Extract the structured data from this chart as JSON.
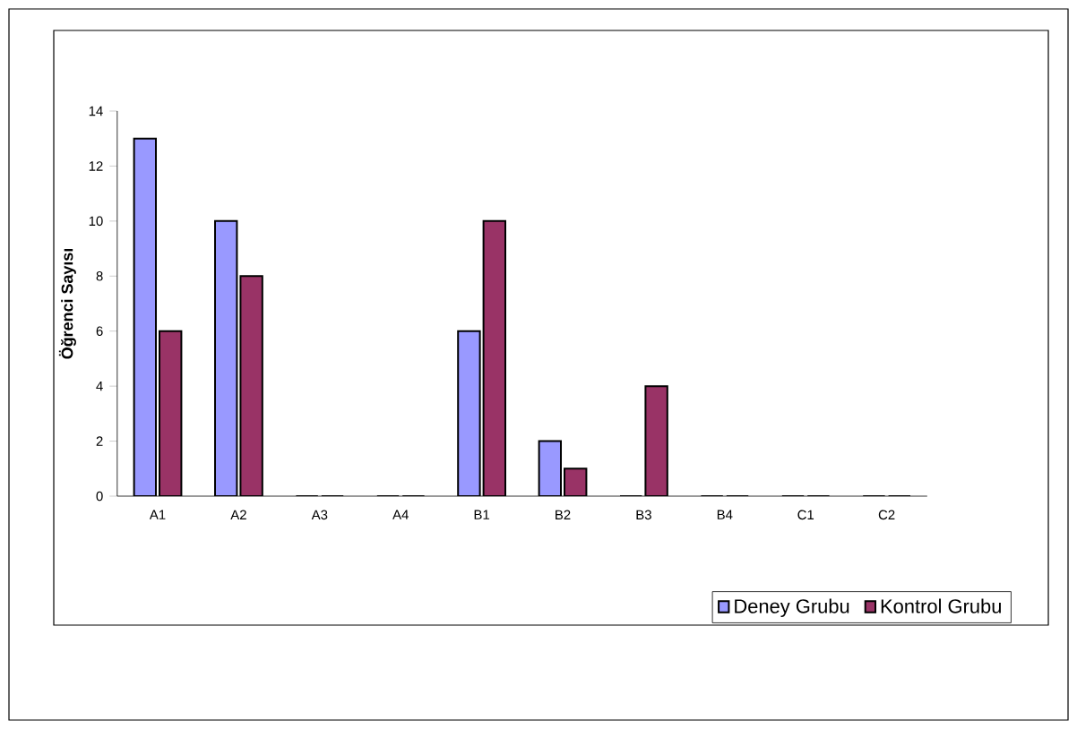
{
  "chart_data": {
    "type": "bar",
    "ylabel": "Öğrenci Sayısı",
    "categories": [
      "A1",
      "A2",
      "A3",
      "A4",
      "B1",
      "B2",
      "B3",
      "B4",
      "C1",
      "C2"
    ],
    "series": [
      {
        "name": "Deney Grubu",
        "color": "#9999ff",
        "values": [
          13,
          10,
          0,
          0,
          6,
          2,
          0,
          0,
          0,
          0
        ]
      },
      {
        "name": "Kontrol Grubu",
        "color": "#993366",
        "values": [
          6,
          8,
          0,
          0,
          10,
          1,
          4,
          0,
          0,
          0
        ]
      }
    ],
    "ylim": [
      0,
      14
    ],
    "yticks": [
      0,
      2,
      4,
      6,
      8,
      10,
      12,
      14
    ],
    "legend": "bottom right"
  }
}
